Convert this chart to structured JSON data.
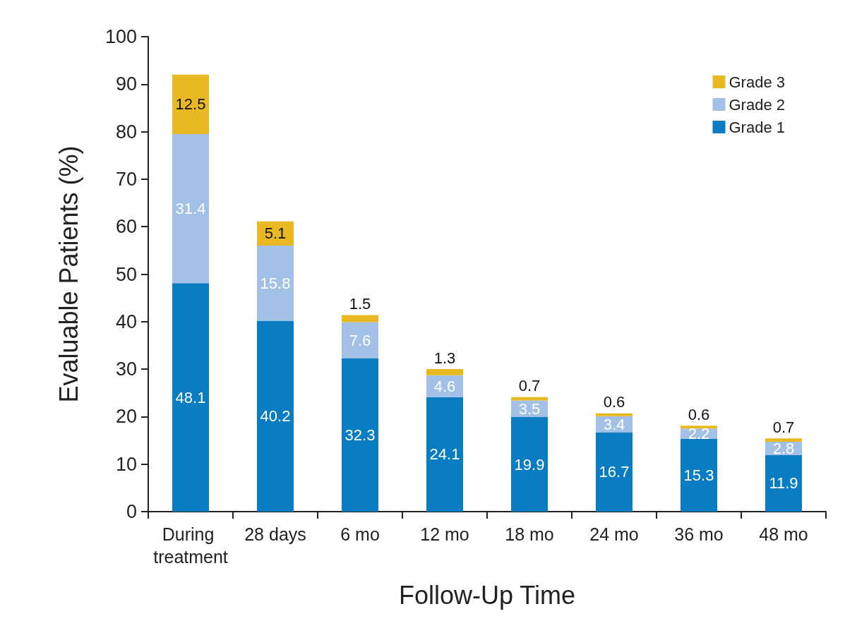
{
  "chart_data": {
    "type": "bar",
    "stacked": true,
    "xlabel": "Follow-Up Time",
    "ylabel": "Evaluable Patients (%)",
    "categories": [
      "During treatment",
      "28 days",
      "6 mo",
      "12 mo",
      "18 mo",
      "24 mo",
      "36 mo",
      "48 mo"
    ],
    "series": [
      {
        "name": "Grade 1",
        "color": "#0a7dc2",
        "values": [
          48.1,
          40.2,
          32.3,
          24.1,
          19.9,
          16.7,
          15.3,
          11.9
        ]
      },
      {
        "name": "Grade 2",
        "color": "#a3c1e6",
        "values": [
          31.4,
          15.8,
          7.6,
          4.6,
          3.5,
          3.4,
          2.2,
          2.8
        ]
      },
      {
        "name": "Grade 3",
        "color": "#e8b923",
        "values": [
          12.5,
          5.1,
          1.5,
          1.3,
          0.7,
          0.6,
          0.6,
          0.7
        ]
      }
    ],
    "ylim": [
      0,
      100
    ],
    "yticks": [
      0,
      10,
      20,
      30,
      40,
      50,
      60,
      70,
      80,
      90,
      100
    ],
    "grid": false,
    "legend": "top right",
    "data_labels": true
  }
}
